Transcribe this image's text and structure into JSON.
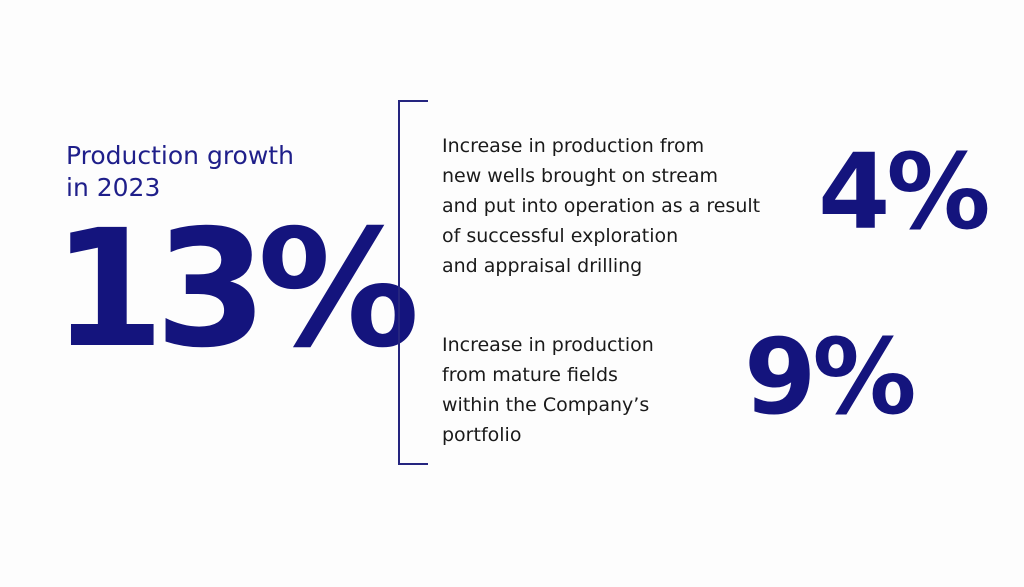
{
  "heading": {
    "line1": "Production growth",
    "line2": "in 2023"
  },
  "total_growth": "13%",
  "stats": [
    {
      "value": "4%",
      "description": "Increase in production from\nnew wells brought on stream\nand put into operation as a result\nof successful exploration\nand appraisal drilling"
    },
    {
      "value": "9%",
      "description": "Increase in production\nfrom mature fields\nwithin the Company’s\nportfolio"
    }
  ],
  "colors": {
    "accent": "#14147d",
    "heading": "#1f1f8a",
    "text": "#1a1a1a",
    "background": "#fdfdfd"
  }
}
